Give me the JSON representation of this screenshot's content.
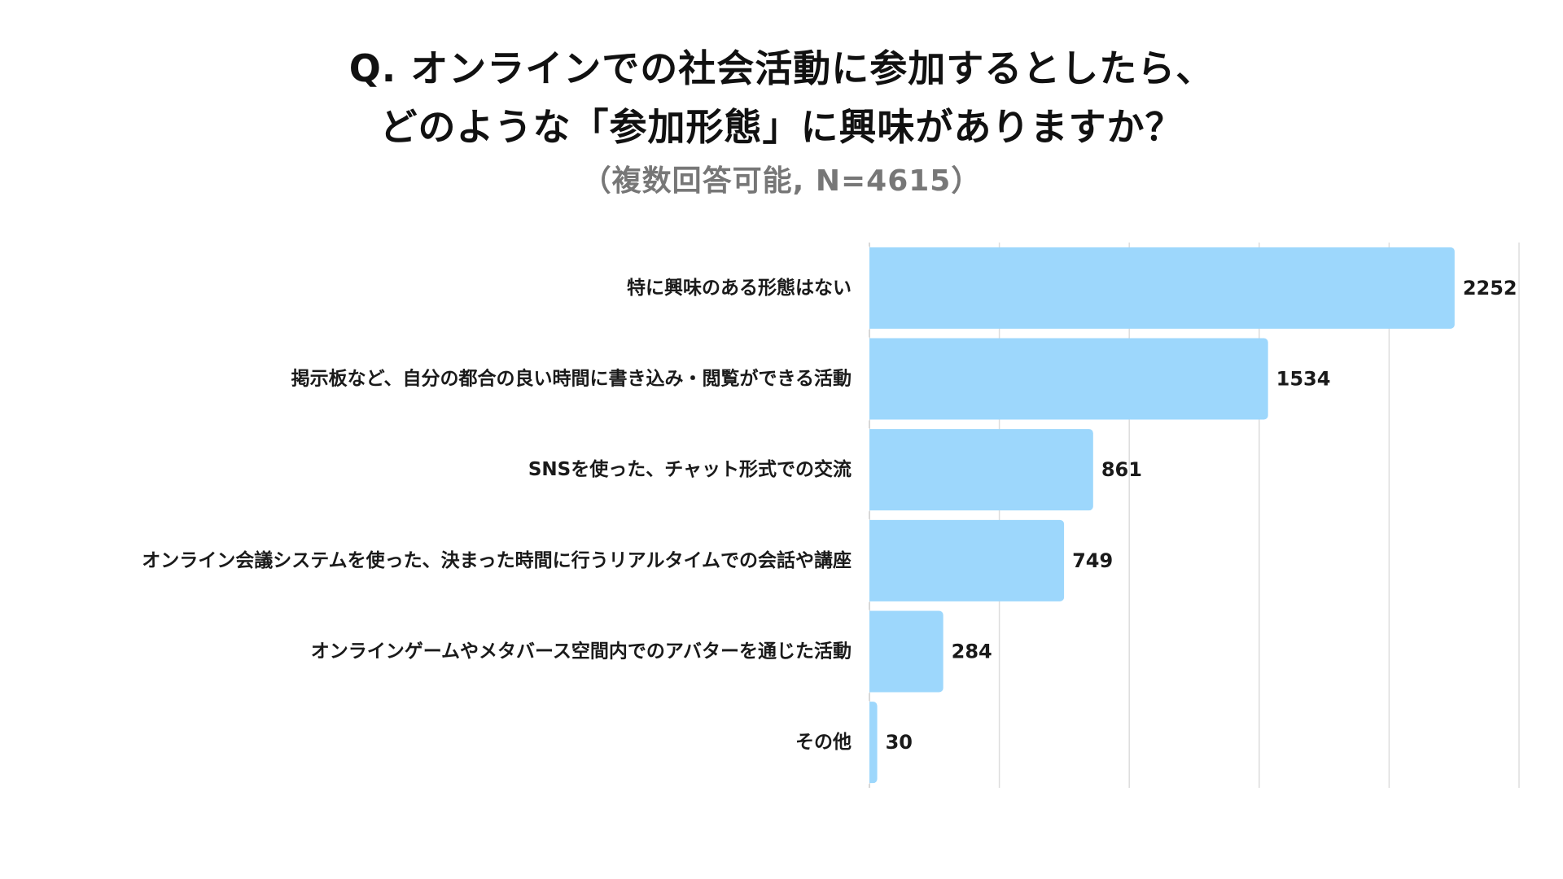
{
  "chart_data": {
    "type": "bar",
    "orientation": "horizontal",
    "title_lines": [
      "Q. オンラインでの社会活動に参加するとしたら、",
      "どのような「参加形態」に興味がありますか？"
    ],
    "subtitle": "（複数回答可能, N=4615）",
    "categories": [
      "特に興味のある形態はない",
      "掲示板など、自分の都合の良い時間に書き込み・閲覧ができる活動",
      "SNSを使った、チャット形式での交流",
      "オンライン会議システムを使った、決まった時間に行うリアルタイムでの会話や講座",
      "オンラインゲームやメタバース空間内でのアバターを通じた活動",
      "その他"
    ],
    "values": [
      2252,
      1534,
      861,
      749,
      284,
      30
    ],
    "value_labels": [
      "2252",
      "1534",
      "861",
      "749",
      "284",
      "30"
    ],
    "xlim": [
      0,
      2500
    ],
    "grid_step": 500,
    "grid": true,
    "xlabel": "",
    "ylabel": "",
    "colors": {
      "bar": "#9dd7fc",
      "grid": "#dddddd",
      "text": "#1a1a1a",
      "subtitle": "#777777"
    }
  }
}
